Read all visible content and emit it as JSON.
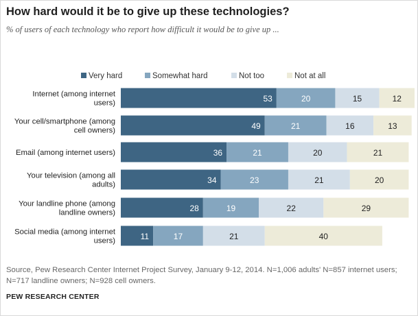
{
  "header": {
    "title": "How hard would it be to give up these technologies?",
    "subtitle": "% of users of each technology who report how difficult it would be to give up ..."
  },
  "footer": {
    "source": "Source, Pew Research Center Internet Project Survey, January 9-12, 2014. N=1,006 adults' N=857 internet users; N=717 landline owners; N=928 cell owners.",
    "brand": "PEW RESEARCH CENTER"
  },
  "chart_data": {
    "type": "bar",
    "orientation": "horizontal",
    "stacked": true,
    "categories": [
      "Internet (among internet users)",
      "Your cell/smartphone (among cell owners)",
      "Email (among internet users)",
      "Your television (among all adults)",
      "Your landline phone (among landline owners)",
      "Social media (among internet users)"
    ],
    "series": [
      {
        "name": "Very hard",
        "color": "#3e6583",
        "values": [
          53,
          49,
          36,
          34,
          28,
          11
        ]
      },
      {
        "name": "Somewhat hard",
        "color": "#85a6bf",
        "values": [
          20,
          21,
          21,
          23,
          19,
          17
        ]
      },
      {
        "name": "Not too",
        "color": "#d3dee8",
        "values": [
          15,
          16,
          20,
          21,
          22,
          21
        ]
      },
      {
        "name": "Not at all",
        "color": "#edebd9",
        "values": [
          12,
          13,
          21,
          20,
          29,
          40
        ]
      }
    ],
    "legend_position": "top",
    "grid": false,
    "xlim": [
      0,
      100
    ]
  }
}
